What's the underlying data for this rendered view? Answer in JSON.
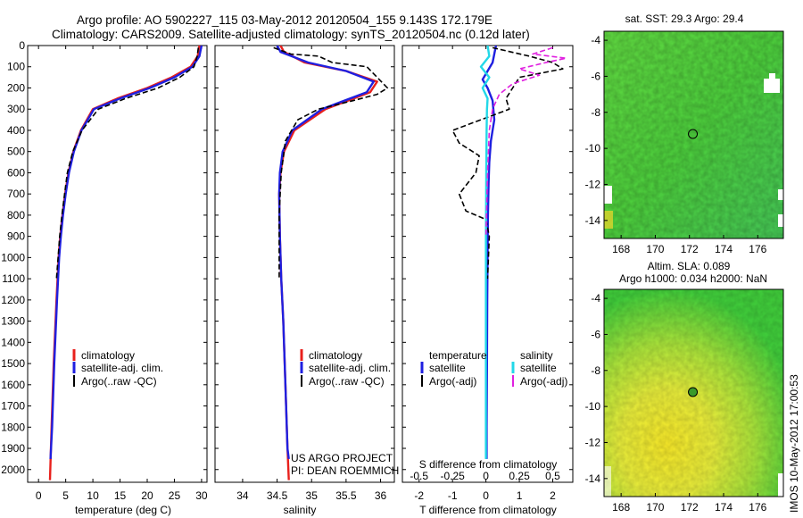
{
  "header": {
    "line1": "Argo profile: AO 5902227_115 03-May-2012 20120504_155 9.143S 172.179E",
    "line2": "Climatology: CARS2009. Satellite-adjusted climatology: synTS_20120504.nc (0.12d later)"
  },
  "colors": {
    "climatology": "#e8201c",
    "satellite": "#1f1fe0",
    "argo": "#000000",
    "satellite_salinity": "#22d8e8",
    "argo_salinity": "#e020e0"
  },
  "chart_data": [
    {
      "type": "line",
      "id": "temperature",
      "xlabel": "temperature (deg C)",
      "xlim": [
        -2,
        31
      ],
      "xticks": [
        0,
        5,
        10,
        15,
        20,
        25,
        30
      ],
      "ylim": [
        2060,
        0
      ],
      "yticks": [
        0,
        100,
        200,
        300,
        400,
        500,
        600,
        700,
        800,
        900,
        1000,
        1100,
        1200,
        1300,
        1400,
        1500,
        1600,
        1700,
        1800,
        1900,
        2000
      ],
      "legend": [
        "climatology",
        "satellite-adj. clim.",
        "Argo(..raw -QC)"
      ],
      "legend_position": "bottom-center",
      "series": [
        {
          "name": "climatology",
          "color": "#e8201c",
          "style": "solid",
          "x": [
            29.6,
            29.3,
            28.0,
            24.5,
            20.0,
            14.5,
            10.0,
            7.8,
            6.4,
            5.5,
            4.9,
            4.4,
            4.0,
            3.7,
            3.3,
            2.8,
            2.4,
            2.1
          ],
          "y": [
            0,
            50,
            100,
            150,
            200,
            250,
            300,
            400,
            500,
            600,
            700,
            800,
            900,
            1000,
            1200,
            1500,
            1800,
            2050
          ]
        },
        {
          "name": "satellite-adj. clim.",
          "color": "#1f1fe0",
          "style": "solid",
          "x": [
            30.0,
            29.6,
            28.3,
            25.0,
            20.5,
            15.0,
            10.2,
            7.9,
            6.5,
            5.6,
            5.0,
            4.5,
            4.1,
            3.8,
            3.4,
            2.9,
            2.5,
            2.2
          ],
          "y": [
            0,
            50,
            100,
            150,
            200,
            250,
            300,
            400,
            500,
            600,
            700,
            800,
            900,
            1000,
            1200,
            1500,
            1800,
            1950
          ]
        },
        {
          "name": "Argo(..raw -QC)",
          "color": "#000000",
          "style": "dashed",
          "x": [
            29.4,
            29.2,
            28.6,
            26.0,
            22.0,
            16.0,
            11.0,
            8.0,
            6.3,
            5.3,
            4.8,
            4.3,
            3.9,
            3.6,
            3.3
          ],
          "y": [
            10,
            50,
            100,
            150,
            200,
            250,
            300,
            400,
            500,
            600,
            700,
            800,
            900,
            1000,
            1100
          ]
        }
      ]
    },
    {
      "type": "line",
      "id": "salinity",
      "xlabel": "salinity",
      "xlim": [
        33.6,
        36.2
      ],
      "xticks": [
        34,
        34.5,
        35,
        35.5,
        36
      ],
      "xticklabels": [
        "34",
        "34.5",
        "35",
        "35.5",
        "36"
      ],
      "ylim": [
        2060,
        0
      ],
      "legend": [
        "climatology",
        "satellite-adj. clim.",
        "Argo(..raw -QC)"
      ],
      "legend_position": "bottom-center",
      "annotation": [
        "US ARGO PROJECT",
        "PI: DEAN ROEMMICH"
      ],
      "series": [
        {
          "name": "climatology",
          "color": "#e8201c",
          "style": "solid",
          "x": [
            34.55,
            34.6,
            34.9,
            35.5,
            35.95,
            35.85,
            35.2,
            34.75,
            34.6,
            34.55,
            34.53,
            34.54,
            34.56,
            34.59,
            34.62,
            34.65,
            34.67
          ],
          "y": [
            0,
            30,
            80,
            120,
            170,
            220,
            300,
            400,
            500,
            600,
            700,
            900,
            1100,
            1300,
            1600,
            1900,
            2050
          ]
        },
        {
          "name": "satellite-adj. clim.",
          "color": "#1f1fe0",
          "style": "solid",
          "x": [
            34.5,
            34.55,
            34.95,
            35.5,
            35.9,
            35.8,
            35.15,
            34.72,
            34.58,
            34.54,
            34.53,
            34.54,
            34.56,
            34.59,
            34.62,
            34.65,
            34.67
          ],
          "y": [
            0,
            30,
            80,
            120,
            170,
            220,
            300,
            400,
            500,
            600,
            700,
            900,
            1100,
            1300,
            1600,
            1900,
            1950
          ]
        },
        {
          "name": "Argo(..raw -QC)",
          "color": "#000000",
          "style": "dashed",
          "x": [
            34.45,
            34.7,
            35.1,
            35.3,
            35.8,
            35.95,
            36.1,
            35.95,
            35.6,
            35.1,
            34.8,
            34.62,
            34.56,
            34.53,
            34.53
          ],
          "y": [
            10,
            40,
            50,
            80,
            100,
            150,
            200,
            230,
            260,
            300,
            350,
            450,
            600,
            800,
            1100
          ]
        }
      ]
    },
    {
      "type": "line",
      "id": "difference",
      "xlabel": "T difference from climatology",
      "xlabel2": "S difference from climatology",
      "xlim": [
        -2.5,
        2.6
      ],
      "xticks": [
        -2,
        -1,
        0,
        1,
        2
      ],
      "x2ticks": [
        -0.5,
        -0.25,
        0,
        0.25,
        0.5
      ],
      "ylim": [
        2060,
        0
      ],
      "legend_titles": [
        "temperature",
        "salinity"
      ],
      "legend": [
        "satellite",
        "Argo(-adj)",
        "satellite",
        "Argo(-adj)"
      ],
      "legend_position": "bottom-center",
      "series": [
        {
          "name": "satellite",
          "color": "#1f1fe0",
          "style": "solid",
          "x": [
            0.3,
            0.25,
            0.2,
            0.05,
            -0.1,
            0.05,
            0.2,
            0.25,
            0.15,
            0.1,
            0.08,
            0.06,
            0.05,
            0.04,
            0.03,
            0.02,
            0.02
          ],
          "y": [
            0,
            40,
            80,
            120,
            160,
            200,
            260,
            350,
            450,
            550,
            650,
            800,
            1000,
            1200,
            1500,
            1800,
            1950
          ]
        },
        {
          "name": "Argo(-adj)",
          "color": "#000000",
          "style": "dashed",
          "x": [
            0.2,
            1.3,
            2.0,
            2.3,
            1.0,
            0.8,
            0.6,
            0.7,
            -1.0,
            -0.8,
            -0.2,
            -0.3,
            -0.8,
            -0.6,
            0.0,
            0.1,
            0.05
          ],
          "y": [
            10,
            50,
            80,
            110,
            150,
            200,
            250,
            300,
            400,
            460,
            520,
            600,
            700,
            780,
            820,
            900,
            1100
          ]
        },
        {
          "name": "satellite",
          "color": "#22d8e8",
          "style": "solid",
          "x": [
            0.05,
            0.1,
            -0.15,
            0.1,
            -0.1,
            0.05,
            0.03,
            0.02,
            0.01,
            0.0,
            0.0,
            0.0
          ],
          "y": [
            0,
            50,
            100,
            150,
            200,
            250,
            300,
            400,
            600,
            900,
            1400,
            1950
          ]
        },
        {
          "name": "Argo(-adj)",
          "color": "#e020e0",
          "style": "dashed",
          "x": [
            2.0,
            1.4,
            2.4,
            1.8,
            1.0,
            1.6,
            0.8,
            0.4,
            0.2,
            0.1,
            0.05,
            0.0
          ],
          "y": [
            10,
            40,
            60,
            80,
            110,
            140,
            180,
            230,
            300,
            400,
            600,
            900
          ]
        }
      ]
    },
    {
      "type": "heatmap",
      "id": "sst-map",
      "title": "sat. SST: 29.3 Argo: 29.4",
      "xlim": [
        167,
        177.5
      ],
      "ylim": [
        -15,
        -3.5
      ],
      "xticks": [
        168,
        170,
        172,
        174,
        176
      ],
      "yticks": [
        -4,
        -6,
        -8,
        -10,
        -12,
        -14
      ],
      "marker": {
        "lon": 172.2,
        "lat": -9.2
      }
    },
    {
      "type": "heatmap",
      "id": "sla-map",
      "title": "Altim. SLA: 0.089",
      "title2": "Argo h1000: 0.034 h2000: NaN",
      "xlim": [
        167,
        177.5
      ],
      "ylim": [
        -15,
        -3.5
      ],
      "xticks": [
        168,
        170,
        172,
        174,
        176
      ],
      "yticks": [
        -4,
        -6,
        -8,
        -10,
        -12,
        -14
      ],
      "marker": {
        "lon": 172.2,
        "lat": -9.2
      }
    }
  ],
  "footer": {
    "stamp": "IMOS 10-May-2012 17:00:53"
  }
}
